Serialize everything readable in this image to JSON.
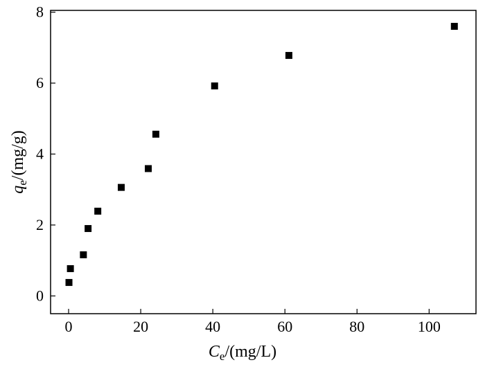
{
  "chart_data": {
    "type": "scatter",
    "xlabel": {
      "var": "C",
      "sub": "e",
      "unit": "/(mg/L)"
    },
    "ylabel": {
      "var": "q",
      "sub": "e",
      "unit": "/(mg/g)"
    },
    "xlim": [
      -5,
      113
    ],
    "ylim": [
      -0.5,
      8.05
    ],
    "xticks": [
      0,
      20,
      40,
      60,
      80,
      100
    ],
    "yticks": [
      0,
      2,
      4,
      6,
      8
    ],
    "grid": false,
    "marker_color": "#000000",
    "points": [
      {
        "x": 0.1,
        "y": 0.38
      },
      {
        "x": 0.5,
        "y": 0.77
      },
      {
        "x": 4.1,
        "y": 1.16
      },
      {
        "x": 5.4,
        "y": 1.9
      },
      {
        "x": 8.1,
        "y": 2.39
      },
      {
        "x": 14.6,
        "y": 3.06
      },
      {
        "x": 22.1,
        "y": 3.59
      },
      {
        "x": 24.2,
        "y": 4.56
      },
      {
        "x": 40.5,
        "y": 5.92
      },
      {
        "x": 61.1,
        "y": 6.78
      },
      {
        "x": 107.0,
        "y": 7.6
      }
    ]
  }
}
